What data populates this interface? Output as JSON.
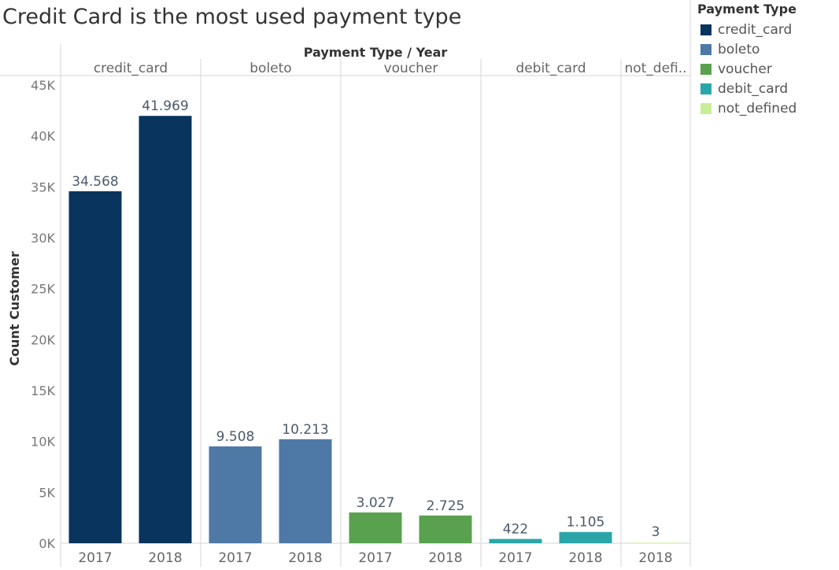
{
  "title": "Credit Card is the most used payment type",
  "legend": {
    "title": "Payment Type",
    "items": [
      {
        "label": "credit_card",
        "color": "#08345e"
      },
      {
        "label": "boleto",
        "color": "#4e79a7"
      },
      {
        "label": "voucher",
        "color": "#59a14f"
      },
      {
        "label": "debit_card",
        "color": "#2aa6a8"
      },
      {
        "label": "not_defined",
        "color": "#c7ee96"
      }
    ]
  },
  "chart_data": {
    "type": "bar",
    "column_header": "Payment Type  /  Year",
    "ylabel": "Count Customer",
    "ylim": [
      0,
      45000
    ],
    "yticks": [
      {
        "value": 0,
        "label": "0K"
      },
      {
        "value": 5000,
        "label": "5K"
      },
      {
        "value": 10000,
        "label": "10K"
      },
      {
        "value": 15000,
        "label": "15K"
      },
      {
        "value": 20000,
        "label": "20K"
      },
      {
        "value": 25000,
        "label": "25K"
      },
      {
        "value": 30000,
        "label": "30K"
      },
      {
        "value": 35000,
        "label": "35K"
      },
      {
        "value": 40000,
        "label": "40K"
      },
      {
        "value": 45000,
        "label": "45K"
      }
    ],
    "groups": [
      {
        "name": "credit_card",
        "label": "credit_card",
        "color": "#08345e",
        "bars": [
          {
            "year": "2017",
            "value": 34568,
            "label": "34.568"
          },
          {
            "year": "2018",
            "value": 41969,
            "label": "41.969"
          }
        ]
      },
      {
        "name": "boleto",
        "label": "boleto",
        "color": "#4e79a7",
        "bars": [
          {
            "year": "2017",
            "value": 9508,
            "label": "9.508"
          },
          {
            "year": "2018",
            "value": 10213,
            "label": "10.213"
          }
        ]
      },
      {
        "name": "voucher",
        "label": "voucher",
        "color": "#59a14f",
        "bars": [
          {
            "year": "2017",
            "value": 3027,
            "label": "3.027"
          },
          {
            "year": "2018",
            "value": 2725,
            "label": "2.725"
          }
        ]
      },
      {
        "name": "debit_card",
        "label": "debit_card",
        "color": "#2aa6a8",
        "bars": [
          {
            "year": "2017",
            "value": 422,
            "label": "422"
          },
          {
            "year": "2018",
            "value": 1105,
            "label": "1.105"
          }
        ]
      },
      {
        "name": "not_defined",
        "label": "not_defi..",
        "color": "#c7ee96",
        "bars": [
          {
            "year": "2018",
            "value": 3,
            "label": "3"
          }
        ]
      }
    ]
  }
}
